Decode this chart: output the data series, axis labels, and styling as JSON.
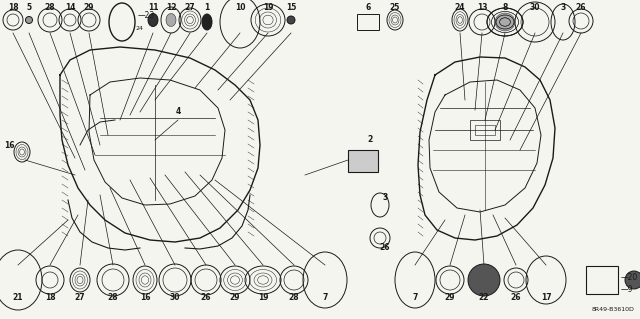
{
  "diagram_code": "8R49-B3610D",
  "bg_color": "#f5f5f0",
  "line_color": "#1a1a1a",
  "text_color": "#1a1a1a",
  "fig_width": 6.4,
  "fig_height": 3.19
}
